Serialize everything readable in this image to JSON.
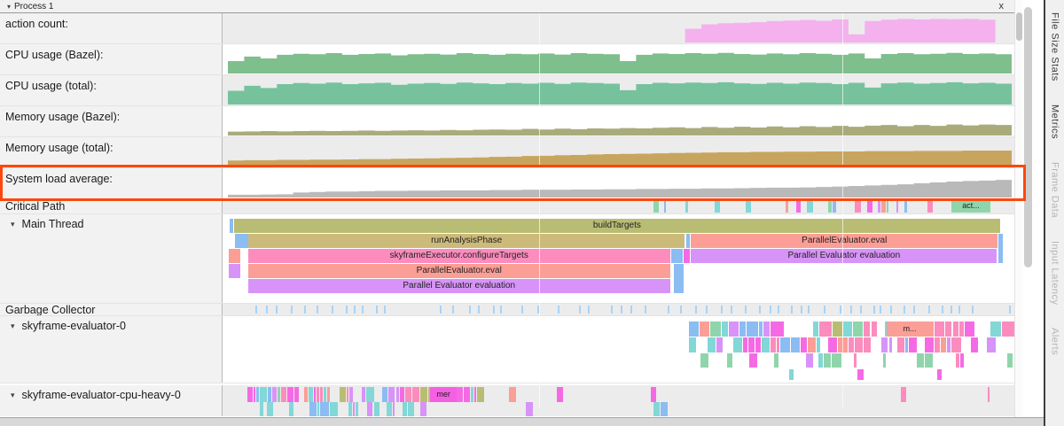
{
  "header": {
    "title": "Process 1",
    "close_label": "x"
  },
  "counters": [
    {
      "label": "action count:",
      "color": "#f4b1ee",
      "values": [
        0,
        0,
        0,
        0,
        0,
        0,
        0,
        0,
        0,
        0,
        0,
        0,
        0,
        0,
        0,
        0,
        0,
        0,
        0,
        0,
        0,
        0,
        0,
        0,
        0,
        0,
        0,
        0,
        0.5,
        0.66,
        0.7,
        0.72,
        0.74,
        0.78,
        0.8,
        0.82,
        0.79,
        0.84,
        0.3,
        0.78,
        0.83,
        0.86,
        0.84,
        0.86,
        0.85,
        0.86,
        0.83,
        0
      ]
    },
    {
      "label": "CPU usage (Bazel):",
      "color": "#7fbe8d",
      "values": [
        0.45,
        0.62,
        0.55,
        0.68,
        0.72,
        0.7,
        0.74,
        0.68,
        0.71,
        0.73,
        0.66,
        0.7,
        0.72,
        0.69,
        0.74,
        0.71,
        0.68,
        0.72,
        0.7,
        0.73,
        0.69,
        0.74,
        0.72,
        0.7,
        0.45,
        0.68,
        0.73,
        0.71,
        0.74,
        0.72,
        0.75,
        0.71,
        0.69,
        0.73,
        0.7,
        0.74,
        0.72,
        0.68,
        0.73,
        0.55,
        0.71,
        0.74,
        0.7,
        0.72,
        0.75,
        0.71,
        0.73,
        0.7
      ]
    },
    {
      "label": "CPU usage (total):",
      "color": "#76c29d",
      "values": [
        0.5,
        0.68,
        0.6,
        0.74,
        0.78,
        0.76,
        0.8,
        0.74,
        0.77,
        0.79,
        0.72,
        0.76,
        0.78,
        0.75,
        0.8,
        0.77,
        0.74,
        0.78,
        0.76,
        0.79,
        0.75,
        0.8,
        0.78,
        0.76,
        0.52,
        0.74,
        0.79,
        0.77,
        0.8,
        0.78,
        0.81,
        0.77,
        0.75,
        0.79,
        0.76,
        0.8,
        0.78,
        0.74,
        0.79,
        0.62,
        0.77,
        0.8,
        0.76,
        0.78,
        0.81,
        0.77,
        0.79,
        0.76
      ]
    },
    {
      "label": "Memory usage (Bazel):",
      "color": "#a9ab7b",
      "values": [
        0.14,
        0.15,
        0.16,
        0.15,
        0.16,
        0.17,
        0.16,
        0.17,
        0.18,
        0.17,
        0.18,
        0.19,
        0.18,
        0.2,
        0.19,
        0.21,
        0.22,
        0.21,
        0.24,
        0.22,
        0.25,
        0.23,
        0.26,
        0.25,
        0.27,
        0.26,
        0.28,
        0.3,
        0.27,
        0.31,
        0.28,
        0.32,
        0.29,
        0.33,
        0.3,
        0.34,
        0.31,
        0.35,
        0.32,
        0.36,
        0.38,
        0.34,
        0.38,
        0.35,
        0.4,
        0.37,
        0.4,
        0.38
      ]
    },
    {
      "label": "Memory usage (total):",
      "color": "#c8a55f",
      "values": [
        0.22,
        0.23,
        0.23,
        0.24,
        0.24,
        0.25,
        0.25,
        0.26,
        0.27,
        0.27,
        0.28,
        0.29,
        0.3,
        0.31,
        0.32,
        0.33,
        0.35,
        0.36,
        0.38,
        0.39,
        0.41,
        0.42,
        0.44,
        0.45,
        0.46,
        0.47,
        0.48,
        0.49,
        0.5,
        0.51,
        0.52,
        0.52,
        0.53,
        0.53,
        0.54,
        0.54,
        0.55,
        0.55,
        0.55,
        0.56,
        0.56,
        0.56,
        0.57,
        0.57,
        0.57,
        0.58,
        0.58,
        0.58
      ]
    },
    {
      "label": "System load average:",
      "color": "#b9b9b9",
      "values": [
        0.1,
        0.1,
        0.11,
        0.12,
        0.18,
        0.2,
        0.22,
        0.22,
        0.23,
        0.24,
        0.24,
        0.25,
        0.25,
        0.26,
        0.26,
        0.26,
        0.27,
        0.27,
        0.28,
        0.28,
        0.28,
        0.29,
        0.29,
        0.3,
        0.3,
        0.31,
        0.31,
        0.32,
        0.32,
        0.33,
        0.33,
        0.34,
        0.35,
        0.36,
        0.36,
        0.37,
        0.38,
        0.4,
        0.42,
        0.44,
        0.46,
        0.48,
        0.52,
        0.55,
        0.58,
        0.6,
        0.62,
        0.64
      ]
    }
  ],
  "critical_path": {
    "label": "Critical Path",
    "tag_label": "act...",
    "tag_color": "#8fd5ab"
  },
  "main_thread": {
    "label": "Main Thread",
    "rows": [
      [
        {
          "x": 0.002,
          "w": 0.005,
          "c": "blue"
        },
        {
          "x": 0.008,
          "w": 0.977,
          "c": "olive",
          "label": "buildTargets"
        }
      ],
      [
        {
          "x": 0.009,
          "w": 0.017,
          "c": "blue"
        },
        {
          "x": 0.026,
          "w": 0.557,
          "c": "khaki",
          "label": "runAnalysisPhase"
        },
        {
          "x": 0.585,
          "w": 0.004,
          "c": "blue"
        },
        {
          "x": 0.591,
          "w": 0.391,
          "c": "salmon",
          "label": "ParallelEvaluator.eval"
        },
        {
          "x": 0.983,
          "w": 0.006,
          "c": "blue",
          "h": 33
        }
      ],
      [
        {
          "x": 0.001,
          "w": 0.015,
          "c": "salmon"
        },
        {
          "x": 0.026,
          "w": 0.538,
          "c": "pink",
          "label": "skyframeExecutor.configureTargets"
        },
        {
          "x": 0.566,
          "w": 0.014,
          "c": "blue"
        },
        {
          "x": 0.582,
          "w": 0.007,
          "c": "magenta"
        },
        {
          "x": 0.591,
          "w": 0.39,
          "c": "purple",
          "label": "Parallel Evaluator evaluation"
        }
      ],
      [
        {
          "x": 0.001,
          "w": 0.015,
          "c": "purple"
        },
        {
          "x": 0.026,
          "w": 0.538,
          "c": "salmon",
          "label": "ParallelEvaluator.eval"
        },
        {
          "x": 0.569,
          "w": 0.012,
          "c": "blue",
          "h": 33
        }
      ],
      [
        {
          "x": 0.026,
          "w": 0.538,
          "c": "purple",
          "label": "Parallel Evaluator evaluation"
        }
      ]
    ]
  },
  "garbage_collector": {
    "label": "Garbage Collector"
  },
  "evaluator0": {
    "label": "skyframe-evaluator-0",
    "tag_label": "m...",
    "tag_color": "#fb9e96"
  },
  "cpu_heavy": {
    "label": "skyframe-evaluator-cpu-heavy-0",
    "tag_label": "mer",
    "tag_color": "#f45fe3"
  },
  "sidebar": {
    "items": [
      {
        "label": "File Size Stats",
        "enabled": true
      },
      {
        "label": "Metrics",
        "enabled": true
      },
      {
        "label": "Frame Data",
        "enabled": false
      },
      {
        "label": "Input Latency",
        "enabled": false
      },
      {
        "label": "Alerts",
        "enabled": false
      }
    ]
  },
  "palette": {
    "olive": "#b9bd74",
    "khaki": "#ccba7b",
    "pink": "#fb8cbd",
    "salmon": "#fb9e96",
    "purple": "#d893f8",
    "blue": "#8bbcf2",
    "magenta": "#f56ae4",
    "teal": "#82d7d7",
    "green": "#8fd5ab",
    "lav": "#cf9af5",
    "gcblue": "#a9d3f5"
  },
  "highlight": {
    "color": "#fd470d"
  }
}
